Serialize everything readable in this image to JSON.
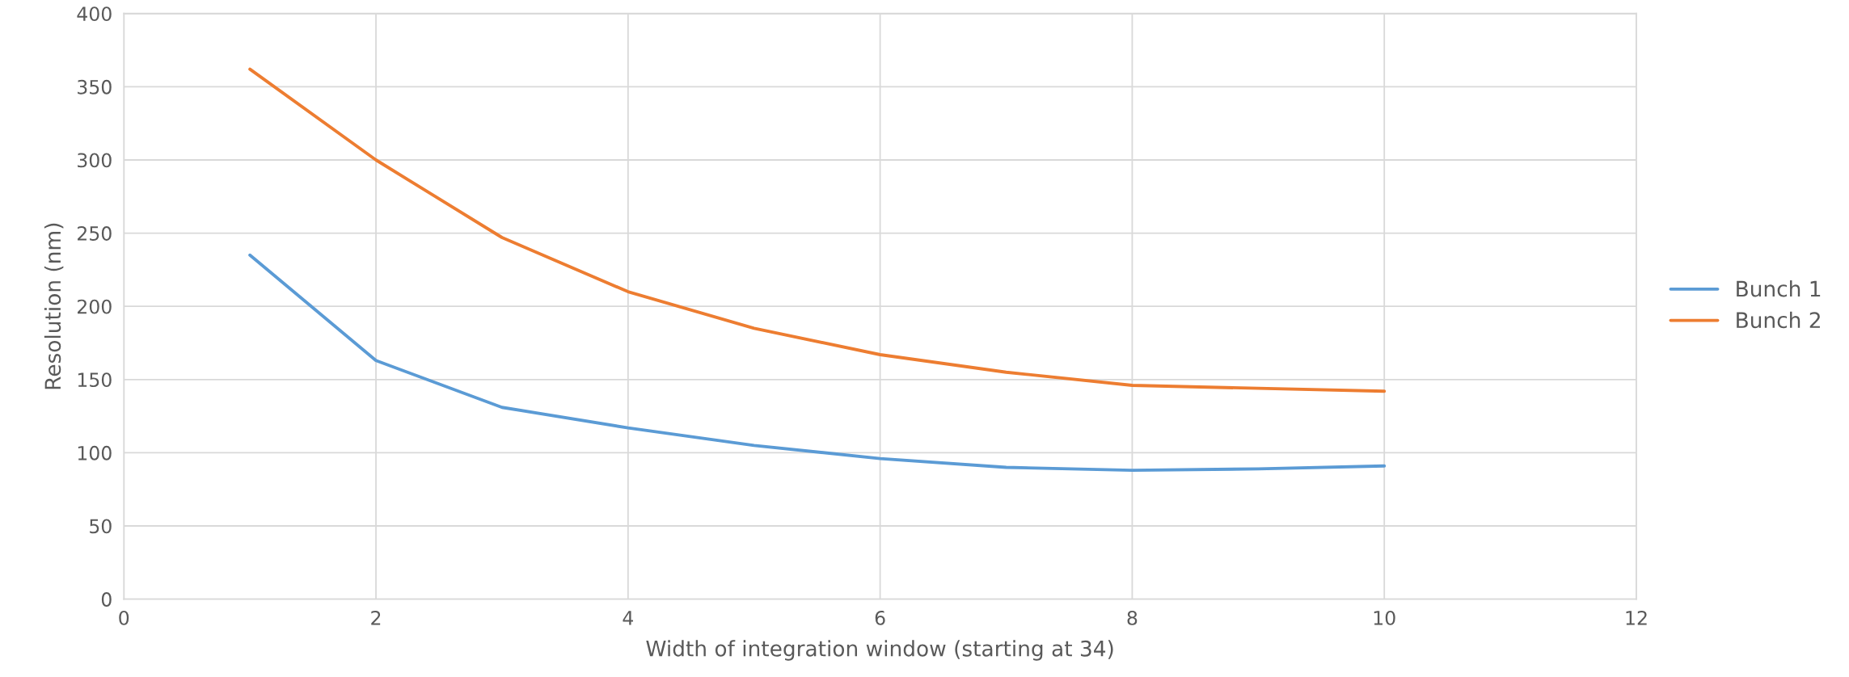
{
  "chart_data": {
    "type": "line",
    "xlabel": "Width of integration window (starting at 34)",
    "ylabel": "Resolution (nm)",
    "x": [
      1,
      2,
      3,
      4,
      5,
      6,
      7,
      8,
      9,
      10
    ],
    "series": [
      {
        "name": "Bunch 1",
        "color": "#5b9bd5",
        "values": [
          235,
          163,
          131,
          117,
          105,
          96,
          90,
          88,
          89,
          91
        ]
      },
      {
        "name": "Bunch 2",
        "color": "#ed7d31",
        "values": [
          362,
          300,
          247,
          210,
          185,
          167,
          155,
          146,
          144,
          142
        ]
      }
    ],
    "xlim": [
      0,
      12
    ],
    "xticks": [
      0,
      2,
      4,
      6,
      8,
      10,
      12
    ],
    "ylim": [
      0,
      400
    ],
    "yticks": [
      0,
      50,
      100,
      150,
      200,
      250,
      300,
      350,
      400
    ],
    "grid": true,
    "legend": "right",
    "marker": "none",
    "line_style": "solid"
  }
}
